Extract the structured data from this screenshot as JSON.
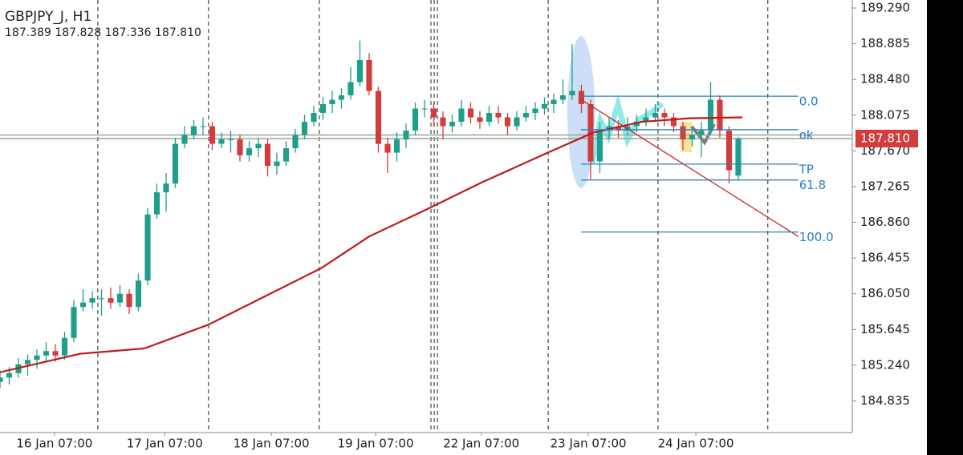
{
  "chart_data": {
    "type": "candlestick",
    "title": "GBPJPY_J, H1",
    "subtitle": "187.389 187.828 187.336 187.810",
    "up_color": "#1f9e8a",
    "down_color": "#d23c3c",
    "xlim": [
      0,
      184.7
    ],
    "ylim": [
      184.476,
      189.381
    ],
    "yticks": [
      {
        "value": 189.29,
        "label": "189.290"
      },
      {
        "value": 188.885,
        "label": "188.885"
      },
      {
        "value": 188.48,
        "label": "188.480"
      },
      {
        "value": 188.075,
        "label": "188.075"
      },
      {
        "value": 187.67,
        "label": "187.670"
      },
      {
        "value": 187.265,
        "label": "187.265"
      },
      {
        "value": 186.86,
        "label": "186.860"
      },
      {
        "value": 186.455,
        "label": "186.455"
      },
      {
        "value": 186.05,
        "label": "186.050"
      },
      {
        "value": 185.645,
        "label": "185.645"
      },
      {
        "value": 185.24,
        "label": "185.240"
      },
      {
        "value": 184.835,
        "label": "184.835"
      }
    ],
    "xticks": [
      {
        "value": 11.8,
        "label": "16 Jan 07:00"
      },
      {
        "value": 35.7,
        "label": "17 Jan 07:00"
      },
      {
        "value": 58.8,
        "label": "18 Jan 07:00"
      },
      {
        "value": 81.4,
        "label": "19 Jan 07:00"
      },
      {
        "value": 104.3,
        "label": "22 Jan 07:00"
      },
      {
        "value": 127.5,
        "label": "23 Jan 07:00"
      },
      {
        "value": 150.8,
        "label": "24 Jan 07:00"
      }
    ],
    "xgrid": [
      21.2,
      45.2,
      69.2,
      93.4,
      94.1,
      94.8,
      118.8,
      142.6,
      166.4
    ],
    "x": [
      0,
      2,
      4,
      6,
      8,
      10,
      12,
      14,
      16,
      18,
      20,
      22,
      24,
      26,
      28,
      30,
      32,
      34,
      36,
      38,
      40,
      42,
      44,
      46,
      48,
      50,
      52,
      54,
      56,
      58,
      60,
      62,
      64,
      66,
      68,
      70,
      72,
      74,
      76,
      78,
      80,
      82,
      84,
      86,
      88,
      90,
      92,
      94,
      96,
      98,
      100,
      102,
      104,
      106,
      108,
      110,
      112,
      114,
      116,
      118,
      120,
      122,
      124,
      126,
      128,
      130,
      132,
      134,
      136,
      138,
      140,
      142,
      144,
      146,
      148,
      150,
      152,
      154,
      156,
      158,
      160
    ],
    "candles": [
      [
        185.05,
        185.18,
        184.98,
        185.1
      ],
      [
        185.1,
        185.22,
        185.02,
        185.15
      ],
      [
        185.15,
        185.32,
        185.1,
        185.25
      ],
      [
        185.25,
        185.36,
        185.12,
        185.3
      ],
      [
        185.3,
        185.42,
        185.2,
        185.35
      ],
      [
        185.35,
        185.5,
        185.28,
        185.4
      ],
      [
        185.4,
        185.48,
        185.28,
        185.35
      ],
      [
        185.35,
        185.62,
        185.3,
        185.55
      ],
      [
        185.55,
        185.98,
        185.5,
        185.9
      ],
      [
        185.9,
        186.1,
        185.85,
        185.95
      ],
      [
        185.95,
        186.08,
        185.88,
        186.0
      ],
      [
        186.0,
        186.1,
        185.8,
        186.0
      ],
      [
        186.0,
        186.12,
        185.88,
        185.95
      ],
      [
        185.95,
        186.15,
        185.9,
        186.05
      ],
      [
        186.05,
        186.1,
        185.82,
        185.9
      ],
      [
        185.9,
        186.28,
        185.85,
        186.2
      ],
      [
        186.2,
        187.02,
        186.15,
        186.95
      ],
      [
        186.95,
        187.3,
        186.9,
        187.2
      ],
      [
        187.2,
        187.42,
        186.98,
        187.3
      ],
      [
        187.3,
        187.82,
        187.25,
        187.75
      ],
      [
        187.75,
        187.95,
        187.7,
        187.85
      ],
      [
        187.85,
        188.02,
        187.8,
        187.95
      ],
      [
        187.95,
        188.05,
        187.85,
        187.95
      ],
      [
        187.95,
        188.0,
        187.68,
        187.75
      ],
      [
        187.75,
        187.88,
        187.7,
        187.8
      ],
      [
        187.8,
        187.9,
        187.65,
        187.8
      ],
      [
        187.8,
        187.85,
        187.55,
        187.62
      ],
      [
        187.62,
        187.78,
        187.55,
        187.7
      ],
      [
        187.7,
        187.82,
        187.6,
        187.75
      ],
      [
        187.75,
        187.8,
        187.38,
        187.5
      ],
      [
        187.5,
        187.65,
        187.4,
        187.55
      ],
      [
        187.55,
        187.78,
        187.5,
        187.7
      ],
      [
        187.7,
        187.92,
        187.65,
        187.85
      ],
      [
        187.85,
        188.08,
        187.8,
        188.0
      ],
      [
        188.0,
        188.18,
        187.95,
        188.1
      ],
      [
        188.1,
        188.28,
        188.02,
        188.2
      ],
      [
        188.2,
        188.35,
        188.1,
        188.25
      ],
      [
        188.25,
        188.38,
        188.15,
        188.3
      ],
      [
        188.3,
        188.62,
        188.25,
        188.45
      ],
      [
        188.45,
        188.92,
        188.4,
        188.7
      ],
      [
        188.7,
        188.78,
        188.3,
        188.35
      ],
      [
        188.35,
        188.4,
        187.65,
        187.75
      ],
      [
        187.75,
        187.82,
        187.42,
        187.65
      ],
      [
        187.65,
        187.88,
        187.55,
        187.8
      ],
      [
        187.8,
        187.98,
        187.7,
        187.9
      ],
      [
        187.9,
        188.22,
        187.85,
        188.15
      ],
      [
        188.15,
        188.25,
        188.05,
        188.15
      ],
      [
        188.15,
        188.22,
        187.95,
        188.05
      ],
      [
        188.05,
        188.12,
        187.8,
        187.95
      ],
      [
        187.95,
        188.08,
        187.88,
        188.0
      ],
      [
        188.0,
        188.25,
        187.95,
        188.15
      ],
      [
        188.15,
        188.22,
        187.98,
        188.05
      ],
      [
        188.05,
        188.12,
        187.92,
        188.0
      ],
      [
        188.0,
        188.18,
        187.95,
        188.1
      ],
      [
        188.1,
        188.18,
        187.98,
        188.05
      ],
      [
        188.05,
        188.1,
        187.85,
        187.95
      ],
      [
        187.95,
        188.12,
        187.9,
        188.05
      ],
      [
        188.05,
        188.18,
        188.0,
        188.1
      ],
      [
        188.1,
        188.22,
        188.02,
        188.15
      ],
      [
        188.15,
        188.28,
        188.08,
        188.2
      ],
      [
        188.2,
        188.32,
        188.1,
        188.25
      ],
      [
        188.25,
        188.48,
        188.2,
        188.3
      ],
      [
        188.3,
        188.88,
        188.25,
        188.35
      ],
      [
        188.35,
        188.42,
        188.1,
        188.2
      ],
      [
        188.2,
        188.25,
        187.35,
        187.55
      ],
      [
        187.55,
        188.0,
        187.42,
        187.9
      ],
      [
        187.9,
        188.05,
        187.8,
        187.95
      ],
      [
        187.95,
        188.02,
        187.82,
        187.9
      ],
      [
        187.9,
        188.05,
        187.85,
        187.95
      ],
      [
        187.95,
        188.08,
        187.88,
        188.0
      ],
      [
        188.0,
        188.15,
        187.95,
        188.05
      ],
      [
        188.05,
        188.2,
        188.0,
        188.1
      ],
      [
        188.1,
        188.15,
        187.95,
        188.05
      ],
      [
        188.05,
        188.1,
        187.88,
        187.95
      ],
      [
        187.95,
        188.0,
        187.68,
        187.8
      ],
      [
        187.8,
        187.95,
        187.72,
        187.85
      ],
      [
        187.85,
        188.0,
        187.6,
        187.9
      ],
      [
        187.9,
        188.45,
        187.85,
        188.25
      ],
      [
        188.25,
        188.3,
        187.82,
        187.9
      ],
      [
        187.9,
        187.95,
        187.3,
        187.45
      ],
      [
        187.389,
        187.828,
        187.336,
        187.81
      ]
    ],
    "moving_average": {
      "color": "#c01818",
      "x": [
        0,
        17.4,
        31.3,
        45.2,
        57.4,
        69.6,
        80,
        92.2,
        104.3,
        118.3,
        128.7,
        139.1,
        149.6,
        160.9
      ],
      "values": [
        185.16,
        185.37,
        185.43,
        185.7,
        186.02,
        186.34,
        186.7,
        187.0,
        187.31,
        187.64,
        187.88,
        188.0,
        188.04,
        188.05
      ]
    },
    "levels": {
      "color": "#2a7fc4",
      "x": [
        125.9,
        173
      ],
      "items": [
        {
          "value": 188.29,
          "label": "0.0"
        },
        {
          "value": 187.91,
          "label": "ok"
        },
        {
          "value": 187.52,
          "label": "TP"
        },
        {
          "value": 187.34,
          "label": "61.8"
        },
        {
          "value": 186.75,
          "label": "100.0"
        }
      ]
    },
    "trendline": {
      "color": "#c82828",
      "x": [
        126,
        173
      ],
      "values": [
        188.25,
        186.7
      ]
    },
    "price_lines": [
      187.85
    ],
    "last_price": {
      "value": 187.81,
      "label": "187.810",
      "color": "#d23c3c"
    }
  }
}
